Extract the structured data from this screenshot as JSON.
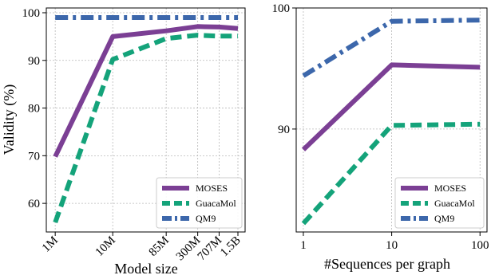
{
  "chart_data": [
    {
      "type": "line",
      "xlabel": "Model size",
      "ylabel": "Validity (%)",
      "x_scale": "log",
      "categories": [
        "1M",
        "10M",
        "85M",
        "300M",
        "707M",
        "1.5B"
      ],
      "x": [
        1,
        10,
        85,
        300,
        707,
        1500
      ],
      "xlim": [
        0.7,
        2000
      ],
      "ylim": [
        54,
        101
      ],
      "yticks": [
        60,
        70,
        80,
        90,
        100
      ],
      "grid": true,
      "legend_position": "bottom-right",
      "series": [
        {
          "name": "MOSES",
          "color": "#7b3f94",
          "dash": "solid",
          "values": [
            69.8,
            95.0,
            96.2,
            97.1,
            97.0,
            96.7
          ]
        },
        {
          "name": "GuacaMol",
          "color": "#14a37a",
          "dash": "dashed",
          "values": [
            56.0,
            90.2,
            94.6,
            95.3,
            95.1,
            95.1
          ]
        },
        {
          "name": "QM9",
          "color": "#3c67ab",
          "dash": "dashdot",
          "values": [
            99.0,
            99.0,
            99.0,
            99.0,
            99.0,
            99.0
          ]
        }
      ]
    },
    {
      "type": "line",
      "xlabel": "#Sequences per graph",
      "ylabel": "",
      "x_scale": "log",
      "categories": [
        "1",
        "10",
        "100"
      ],
      "x": [
        1,
        10,
        100
      ],
      "xlim": [
        0.83,
        120
      ],
      "ylim": [
        81.5,
        100
      ],
      "yticks": [
        90,
        100
      ],
      "grid": true,
      "legend_position": "bottom-right",
      "series": [
        {
          "name": "MOSES",
          "color": "#7b3f94",
          "dash": "solid",
          "values": [
            88.3,
            95.3,
            95.1
          ]
        },
        {
          "name": "GuacaMol",
          "color": "#14a37a",
          "dash": "dashed",
          "values": [
            82.2,
            90.3,
            90.4
          ]
        },
        {
          "name": "QM9",
          "color": "#3c67ab",
          "dash": "dashdot",
          "values": [
            94.4,
            98.9,
            99.0
          ]
        }
      ]
    }
  ]
}
